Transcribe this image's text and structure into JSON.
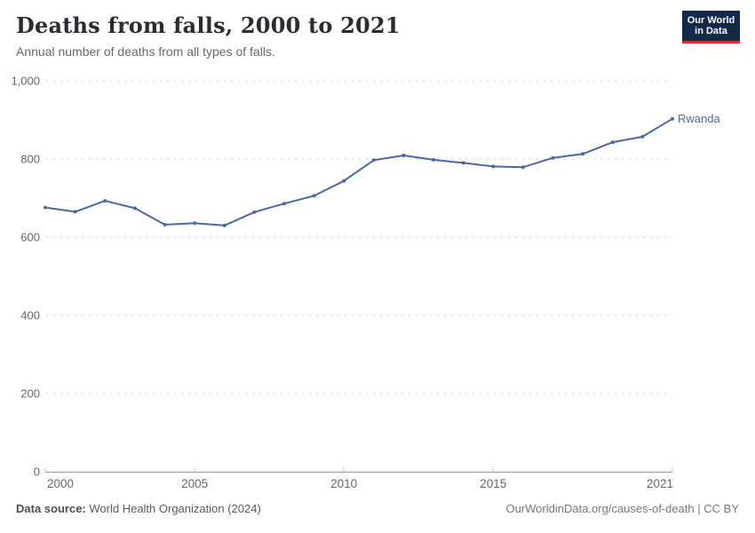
{
  "header": {
    "title": "Deaths from falls, 2000 to 2021",
    "subtitle": "Annual number of deaths from all types of falls."
  },
  "logo": {
    "line1": "Our World",
    "line2": "in Data",
    "bg_color": "#12294a",
    "bar_color": "#dc2a34"
  },
  "chart_data": {
    "type": "line",
    "title": "Deaths from falls, 2000 to 2021",
    "xlabel": "",
    "ylabel": "",
    "x": [
      2000,
      2001,
      2002,
      2003,
      2004,
      2005,
      2006,
      2007,
      2008,
      2009,
      2010,
      2011,
      2012,
      2013,
      2014,
      2015,
      2016,
      2017,
      2018,
      2019,
      2020,
      2021
    ],
    "series": [
      {
        "name": "Rwanda",
        "color": "#4a69a3",
        "values": [
          676,
          665,
          693,
          674,
          632,
          636,
          630,
          664,
          686,
          706,
          744,
          797,
          809,
          798,
          790,
          781,
          779,
          803,
          813,
          843,
          857,
          903
        ]
      }
    ],
    "xlim": [
      2000,
      2021
    ],
    "ylim": [
      0,
      1000
    ],
    "yticks": [
      {
        "value": 0,
        "label": "0"
      },
      {
        "value": 200,
        "label": "200"
      },
      {
        "value": 400,
        "label": "400"
      },
      {
        "value": 600,
        "label": "600"
      },
      {
        "value": 800,
        "label": "800"
      },
      {
        "value": 1000,
        "label": "1,000"
      }
    ],
    "xticks": [
      {
        "value": 2000,
        "label": "2000",
        "anchor": "start"
      },
      {
        "value": 2005,
        "label": "2005",
        "anchor": "middle"
      },
      {
        "value": 2010,
        "label": "2010",
        "anchor": "middle"
      },
      {
        "value": 2015,
        "label": "2015",
        "anchor": "middle"
      },
      {
        "value": 2021,
        "label": "2021",
        "anchor": "end"
      }
    ],
    "grid": "dashed-horizontal",
    "legend_position": "end-of-line-label",
    "colors": {
      "gridline": "#dddddd",
      "axis_line": "#999999",
      "tick_mark": "#cccccc",
      "tick_text": "#666666"
    }
  },
  "footer": {
    "source_label": "Data source:",
    "source_text": "World Health Organization (2024)",
    "credit": "OurWorldinData.org/causes-of-death | CC BY"
  }
}
